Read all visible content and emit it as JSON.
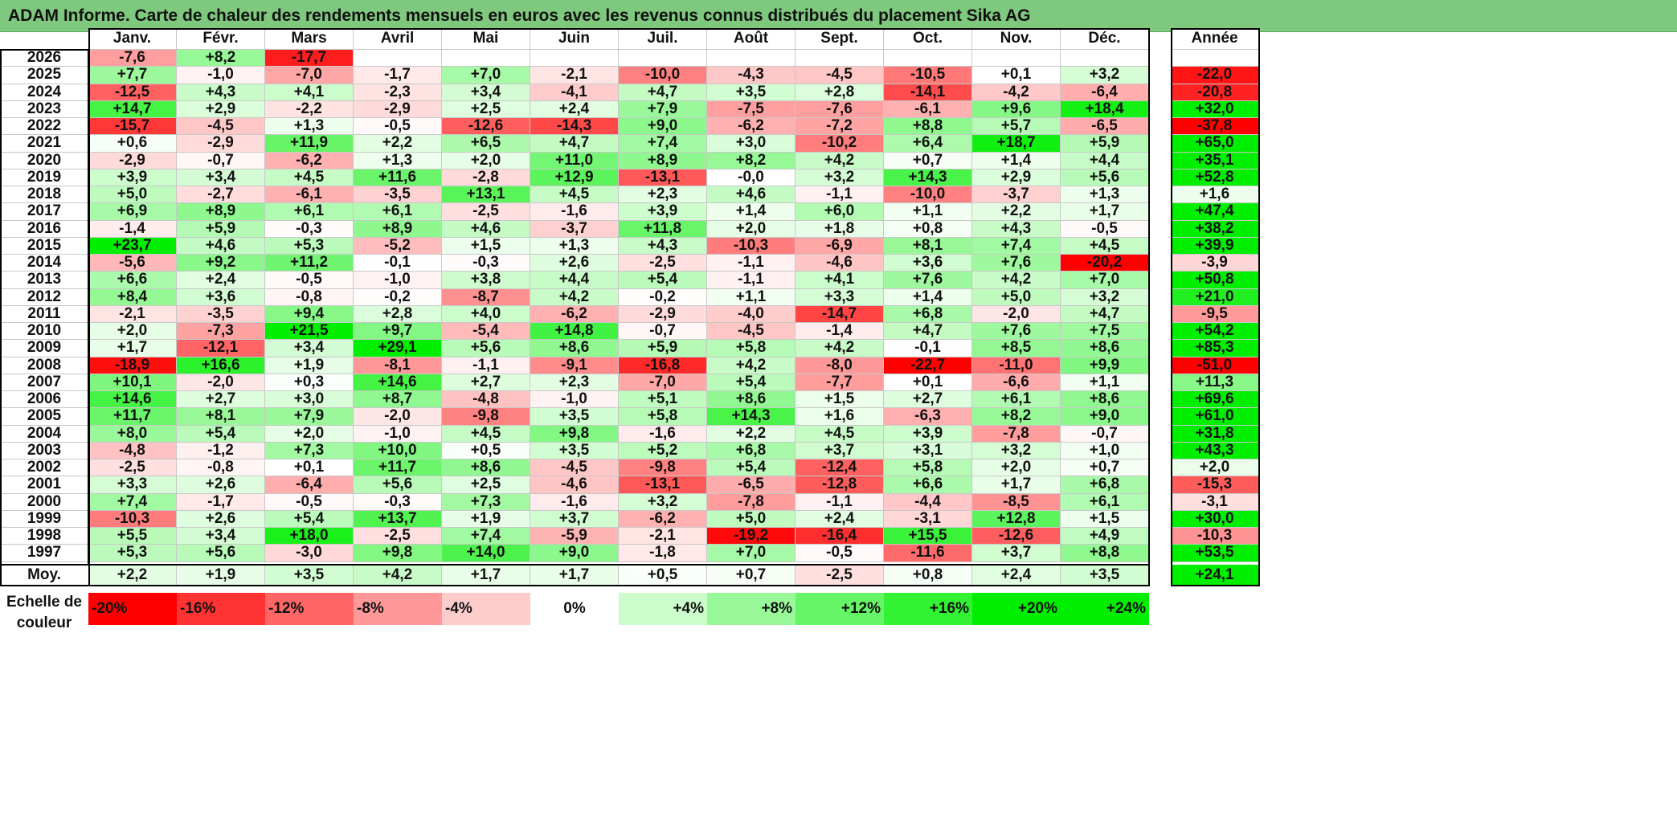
{
  "title": "ADAM Informe. Carte de chaleur des rendements mensuels en euros avec les revenus connus distribués du placement Sika AG",
  "chart_data": {
    "type": "heatmap",
    "months": [
      "Janv.",
      "Févr.",
      "Mars",
      "Avril",
      "Mai",
      "Juin",
      "Juil.",
      "Août",
      "Sept.",
      "Oct.",
      "Nov.",
      "Déc."
    ],
    "annual_header": "Année",
    "rows": [
      {
        "year": "2026",
        "values": [
          "-7,6",
          "+8,2",
          "-17,7",
          "",
          "",
          "",
          "",
          "",
          "",
          "",
          "",
          ""
        ],
        "annual": ""
      },
      {
        "year": "2025",
        "values": [
          "+7,7",
          "-1,0",
          "-7,0",
          "-1,7",
          "+7,0",
          "-2,1",
          "-10,0",
          "-4,3",
          "-4,5",
          "-10,5",
          "+0,1",
          "+3,2"
        ],
        "annual": "-22,0"
      },
      {
        "year": "2024",
        "values": [
          "-12,5",
          "+4,3",
          "+4,1",
          "-2,3",
          "+3,4",
          "-4,1",
          "+4,7",
          "+3,5",
          "+2,8",
          "-14,1",
          "-4,2",
          "-6,4"
        ],
        "annual": "-20,8"
      },
      {
        "year": "2023",
        "values": [
          "+14,7",
          "+2,9",
          "-2,2",
          "-2,9",
          "+2,5",
          "+2,4",
          "+7,9",
          "-7,5",
          "-7,6",
          "-6,1",
          "+9,6",
          "+18,4"
        ],
        "annual": "+32,0"
      },
      {
        "year": "2022",
        "values": [
          "-15,7",
          "-4,5",
          "+1,3",
          "-0,5",
          "-12,6",
          "-14,3",
          "+9,0",
          "-6,2",
          "-7,2",
          "+8,8",
          "+5,7",
          "-6,5"
        ],
        "annual": "-37,8"
      },
      {
        "year": "2021",
        "values": [
          "+0,6",
          "-2,9",
          "+11,9",
          "+2,2",
          "+6,5",
          "+4,7",
          "+7,4",
          "+3,0",
          "-10,2",
          "+6,4",
          "+18,7",
          "+5,9"
        ],
        "annual": "+65,0"
      },
      {
        "year": "2020",
        "values": [
          "-2,9",
          "-0,7",
          "-6,2",
          "+1,3",
          "+2,0",
          "+11,0",
          "+8,9",
          "+8,2",
          "+4,2",
          "+0,7",
          "+1,4",
          "+4,4"
        ],
        "annual": "+35,1"
      },
      {
        "year": "2019",
        "values": [
          "+3,9",
          "+3,4",
          "+4,5",
          "+11,6",
          "-2,8",
          "+12,9",
          "-13,1",
          "-0,0",
          "+3,2",
          "+14,3",
          "+2,9",
          "+5,6"
        ],
        "annual": "+52,8"
      },
      {
        "year": "2018",
        "values": [
          "+5,0",
          "-2,7",
          "-6,1",
          "-3,5",
          "+13,1",
          "+4,5",
          "+2,3",
          "+4,6",
          "-1,1",
          "-10,0",
          "-3,7",
          "+1,3"
        ],
        "annual": "+1,6"
      },
      {
        "year": "2017",
        "values": [
          "+6,9",
          "+8,9",
          "+6,1",
          "+6,1",
          "-2,5",
          "-1,6",
          "+3,9",
          "+1,4",
          "+6,0",
          "+1,1",
          "+2,2",
          "+1,7"
        ],
        "annual": "+47,4"
      },
      {
        "year": "2016",
        "values": [
          "-1,4",
          "+5,9",
          "-0,3",
          "+8,9",
          "+4,6",
          "-3,7",
          "+11,8",
          "+2,0",
          "+1,8",
          "+0,8",
          "+4,3",
          "-0,5"
        ],
        "annual": "+38,2"
      },
      {
        "year": "2015",
        "values": [
          "+23,7",
          "+4,6",
          "+5,3",
          "-5,2",
          "+1,5",
          "+1,3",
          "+4,3",
          "-10,3",
          "-6,9",
          "+8,1",
          "+7,4",
          "+4,5"
        ],
        "annual": "+39,9"
      },
      {
        "year": "2014",
        "values": [
          "-5,6",
          "+9,2",
          "+11,2",
          "-0,1",
          "-0,3",
          "+2,6",
          "-2,5",
          "-1,1",
          "-4,6",
          "+3,6",
          "+7,6",
          "-20,2"
        ],
        "annual": "-3,9"
      },
      {
        "year": "2013",
        "values": [
          "+6,6",
          "+2,4",
          "-0,5",
          "-1,0",
          "+3,8",
          "+4,4",
          "+5,4",
          "-1,1",
          "+4,1",
          "+7,6",
          "+4,2",
          "+7,0"
        ],
        "annual": "+50,8"
      },
      {
        "year": "2012",
        "values": [
          "+8,4",
          "+3,6",
          "-0,8",
          "-0,2",
          "-8,7",
          "+4,2",
          "-0,2",
          "+1,1",
          "+3,3",
          "+1,4",
          "+5,0",
          "+3,2"
        ],
        "annual": "+21,0"
      },
      {
        "year": "2011",
        "values": [
          "-2,1",
          "-3,5",
          "+9,4",
          "+2,8",
          "+4,0",
          "-6,2",
          "-2,9",
          "-4,0",
          "-14,7",
          "+6,8",
          "-2,0",
          "+4,7"
        ],
        "annual": "-9,5"
      },
      {
        "year": "2010",
        "values": [
          "+2,0",
          "-7,3",
          "+21,5",
          "+9,7",
          "-5,4",
          "+14,8",
          "-0,7",
          "-4,5",
          "-1,4",
          "+4,7",
          "+7,6",
          "+7,5"
        ],
        "annual": "+54,2"
      },
      {
        "year": "2009",
        "values": [
          "+1,7",
          "-12,1",
          "+3,4",
          "+29,1",
          "+5,6",
          "+8,6",
          "+5,9",
          "+5,8",
          "+4,2",
          "-0,1",
          "+8,5",
          "+8,6"
        ],
        "annual": "+85,3"
      },
      {
        "year": "2008",
        "values": [
          "-18,9",
          "+16,6",
          "+1,9",
          "-8,1",
          "-1,1",
          "-9,1",
          "-16,8",
          "+4,2",
          "-8,0",
          "-22,7",
          "-11,0",
          "+9,9"
        ],
        "annual": "-51,0"
      },
      {
        "year": "2007",
        "values": [
          "+10,1",
          "-2,0",
          "+0,3",
          "+14,6",
          "+2,7",
          "+2,3",
          "-7,0",
          "+5,4",
          "-7,7",
          "+0,1",
          "-6,6",
          "+1,1"
        ],
        "annual": "+11,3"
      },
      {
        "year": "2006",
        "values": [
          "+14,6",
          "+2,7",
          "+3,0",
          "+8,7",
          "-4,8",
          "-1,0",
          "+5,1",
          "+8,6",
          "+1,5",
          "+2,7",
          "+6,1",
          "+8,6"
        ],
        "annual": "+69,6"
      },
      {
        "year": "2005",
        "values": [
          "+11,7",
          "+8,1",
          "+7,9",
          "-2,0",
          "-9,8",
          "+3,5",
          "+5,8",
          "+14,3",
          "+1,6",
          "-6,3",
          "+8,2",
          "+9,0"
        ],
        "annual": "+61,0"
      },
      {
        "year": "2004",
        "values": [
          "+8,0",
          "+5,4",
          "+2,0",
          "-1,0",
          "+4,5",
          "+9,8",
          "-1,6",
          "+2,2",
          "+4,5",
          "+3,9",
          "-7,8",
          "-0,7"
        ],
        "annual": "+31,8"
      },
      {
        "year": "2003",
        "values": [
          "-4,8",
          "-1,2",
          "+7,3",
          "+10,0",
          "+0,5",
          "+3,5",
          "+5,2",
          "+6,8",
          "+3,7",
          "+3,1",
          "+3,2",
          "+1,0"
        ],
        "annual": "+43,3"
      },
      {
        "year": "2002",
        "values": [
          "-2,5",
          "-0,8",
          "+0,1",
          "+11,7",
          "+8,6",
          "-4,5",
          "-9,8",
          "+5,4",
          "-12,4",
          "+5,8",
          "+2,0",
          "+0,7"
        ],
        "annual": "+2,0"
      },
      {
        "year": "2001",
        "values": [
          "+3,3",
          "+2,6",
          "-6,4",
          "+5,6",
          "+2,5",
          "-4,6",
          "-13,1",
          "-6,5",
          "-12,8",
          "+6,6",
          "+1,7",
          "+6,8"
        ],
        "annual": "-15,3"
      },
      {
        "year": "2000",
        "values": [
          "+7,4",
          "-1,7",
          "-0,5",
          "-0,3",
          "+7,3",
          "-1,6",
          "+3,2",
          "-7,8",
          "-1,1",
          "-4,4",
          "-8,5",
          "+6,1"
        ],
        "annual": "-3,1"
      },
      {
        "year": "1999",
        "values": [
          "-10,3",
          "+2,6",
          "+5,4",
          "+13,7",
          "+1,9",
          "+3,7",
          "-6,2",
          "+5,0",
          "+2,4",
          "-3,1",
          "+12,8",
          "+1,5"
        ],
        "annual": "+30,0"
      },
      {
        "year": "1998",
        "values": [
          "+5,5",
          "+3,4",
          "+18,0",
          "-2,5",
          "+7,4",
          "-5,9",
          "-2,1",
          "-19,2",
          "-16,4",
          "+15,5",
          "-12,6",
          "+4,9"
        ],
        "annual": "-10,3"
      },
      {
        "year": "1997",
        "values": [
          "+5,3",
          "+5,6",
          "-3,0",
          "+9,8",
          "+14,0",
          "+9,0",
          "-1,8",
          "+7,0",
          "-0,5",
          "-11,6",
          "+3,7",
          "+8,8"
        ],
        "annual": "+53,5"
      }
    ],
    "average": {
      "label": "Moy.",
      "values": [
        "+2,2",
        "+1,9",
        "+3,5",
        "+4,2",
        "+1,7",
        "+1,7",
        "+0,5",
        "+0,7",
        "-2,5",
        "+0,8",
        "+2,4",
        "+3,5"
      ],
      "annual": "+24,1"
    },
    "color_scale": {
      "label": "Echelle de couleur",
      "steps": [
        {
          "text": "-20%",
          "value": -20
        },
        {
          "text": "-16%",
          "value": -16
        },
        {
          "text": "-12%",
          "value": -12
        },
        {
          "text": "-8%",
          "value": -8
        },
        {
          "text": "-4%",
          "value": -4
        },
        {
          "text": "0%",
          "value": 0
        },
        {
          "text": "+4%",
          "value": 4
        },
        {
          "text": "+8%",
          "value": 8
        },
        {
          "text": "+12%",
          "value": 12
        },
        {
          "text": "+16%",
          "value": 16
        },
        {
          "text": "+20%",
          "value": 20
        },
        {
          "text": "+24%",
          "value": 24
        }
      ]
    },
    "colors": {
      "negative_max": "#ff0000",
      "neutral": "#ffffff",
      "positive_max": "#00ee00"
    }
  }
}
